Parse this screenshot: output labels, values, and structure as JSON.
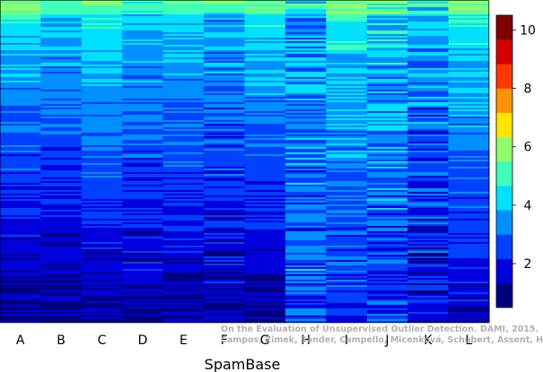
{
  "chart_data": {
    "type": "heatmap",
    "title": "",
    "xlabel": "SpamBase",
    "ylabel": "",
    "columns": [
      "A",
      "B",
      "C",
      "D",
      "E",
      "F",
      "G",
      "H",
      "I",
      "J",
      "K",
      "L"
    ],
    "column_profiles": {
      "A": {
        "top": 4.8,
        "bottom": 0.9,
        "noise": 0.55
      },
      "B": {
        "top": 4.4,
        "bottom": 0.9,
        "noise": 0.6
      },
      "C": {
        "top": 5.0,
        "bottom": 1.1,
        "noise": 0.5
      },
      "D": {
        "top": 4.2,
        "bottom": 1.2,
        "noise": 0.7
      },
      "E": {
        "top": 4.6,
        "bottom": 1.2,
        "noise": 0.55
      },
      "F": {
        "top": 4.0,
        "bottom": 1.3,
        "noise": 0.85
      },
      "G": {
        "top": 4.8,
        "bottom": 1.1,
        "noise": 0.5
      },
      "H": {
        "top": 3.8,
        "bottom": 2.6,
        "noise": 1.1
      },
      "I": {
        "top": 4.8,
        "bottom": 2.2,
        "noise": 0.75
      },
      "J": {
        "top": 4.5,
        "bottom": 2.3,
        "noise": 1.0
      },
      "K": {
        "top": 4.0,
        "bottom": 1.6,
        "noise": 1.05
      },
      "L": {
        "top": 5.0,
        "bottom": 1.5,
        "noise": 0.55
      }
    },
    "colorbar": {
      "min": 0.5,
      "max": 10.5,
      "ticks": [
        2,
        4,
        6,
        8,
        10
      ],
      "colors": [
        "#00007f",
        "#0000dd",
        "#0040ff",
        "#008fff",
        "#00e0ff",
        "#40ffb7",
        "#8fff6f",
        "#ffe500",
        "#ff9400",
        "#ff3800",
        "#d40000",
        "#7f0000"
      ]
    },
    "grid": false,
    "legend": "right"
  },
  "credit": {
    "line1": "On the Evaluation of Unsupervised Outlier Detection. DAMI, 2015.",
    "line2": "Campos, Zimek, Sander, Campello, Micenková, Schubert, Assent, Houle"
  }
}
